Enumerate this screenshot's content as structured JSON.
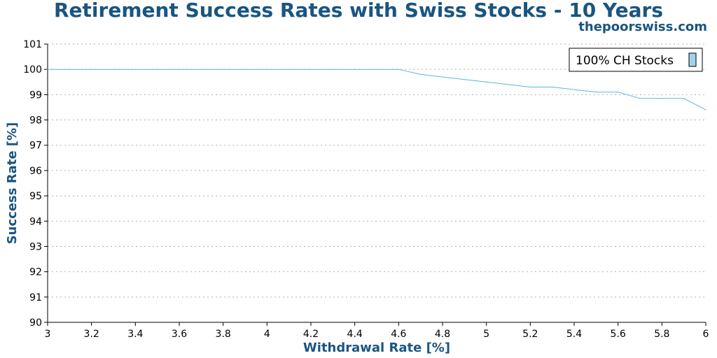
{
  "chart_data": {
    "type": "line",
    "title": "Retirement Success Rates with Swiss Stocks - 10 Years",
    "subtitle": "thepoorswiss.com",
    "xlabel": "Withdrawal Rate [%]",
    "ylabel": "Success Rate [%]",
    "xlim": [
      3,
      6
    ],
    "ylim": [
      90,
      101
    ],
    "xticks": [
      "3",
      "3.2",
      "3.4",
      "3.6",
      "3.8",
      "4",
      "4.2",
      "4.4",
      "4.6",
      "4.8",
      "5",
      "5.2",
      "5.4",
      "5.6",
      "5.8",
      "6"
    ],
    "yticks": [
      "90",
      "91",
      "92",
      "93",
      "94",
      "95",
      "96",
      "97",
      "98",
      "99",
      "100",
      "101"
    ],
    "grid": "horizontal dotted",
    "legend_position": "top-right",
    "series": [
      {
        "name": "100% CH Stocks",
        "color": "#5bb8d6",
        "x": [
          3.0,
          3.1,
          3.2,
          3.3,
          3.4,
          3.5,
          3.6,
          3.7,
          3.8,
          3.9,
          4.0,
          4.1,
          4.2,
          4.3,
          4.4,
          4.5,
          4.6,
          4.7,
          4.8,
          4.9,
          5.0,
          5.1,
          5.2,
          5.3,
          5.4,
          5.5,
          5.6,
          5.7,
          5.8,
          5.9,
          6.0
        ],
        "values": [
          100,
          100,
          100,
          100,
          100,
          100,
          100,
          100,
          100,
          100,
          100,
          100,
          100,
          100,
          100,
          100,
          100,
          99.8,
          99.7,
          99.6,
          99.5,
          99.4,
          99.3,
          99.3,
          99.2,
          99.1,
          99.1,
          98.85,
          98.85,
          98.85,
          98.4
        ]
      }
    ]
  }
}
